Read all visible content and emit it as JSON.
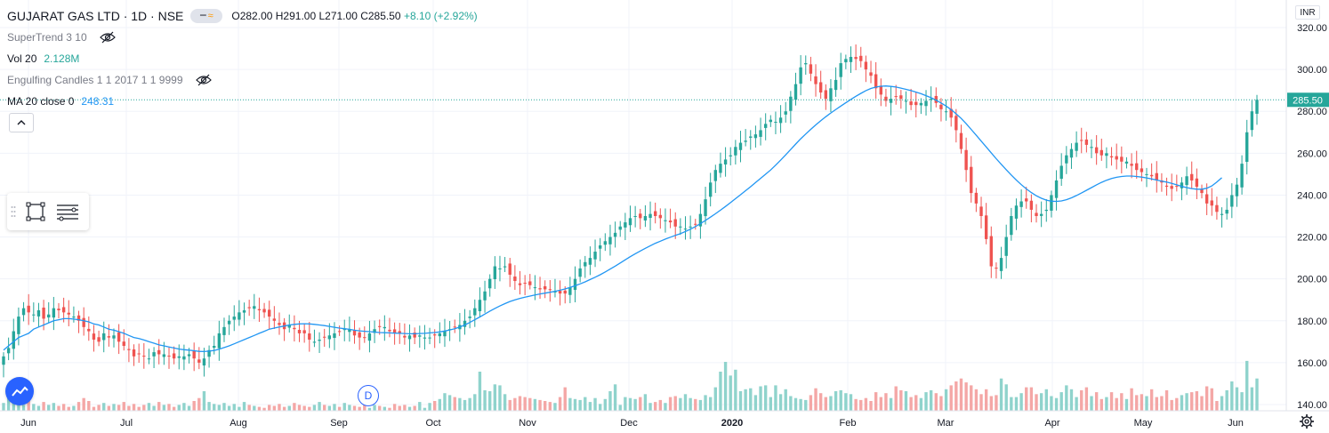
{
  "legend": {
    "title": "GUJARAT GAS LTD · 1D · NSE",
    "ohlc": {
      "o": "O282.00",
      "h": "H291.00",
      "l": "L271.00",
      "c": "C285.50",
      "change": "+8.10 (+2.92%)"
    },
    "supertrend": "SuperTrend 3 10",
    "vol_name": "Vol 20",
    "vol_value": "2.128M",
    "engulfing": "Engulfing Candles 1 1 2017 1 1 9999",
    "ma_name": "MA 20 close 0",
    "ma_value": "248.31"
  },
  "currency": "INR",
  "dividend_marker": "D",
  "colors": {
    "up": "#26a69a",
    "down": "#ef5350",
    "vol_up": "#8fd3cc",
    "vol_down": "#f4a7a6",
    "ma": "#2196f3",
    "grid": "#f0f3fa",
    "last_price_tag": "#26a69a"
  },
  "icons": {
    "hide_supertrend": "eye-off-icon",
    "hide_engulfing": "eye-off-icon",
    "collapse": "chevron-up-icon",
    "rect_tool": "rectangle-tool-icon",
    "lines_tool": "horizontal-lines-icon",
    "logo": "tradingview-cloud-icon",
    "settings": "gear-icon"
  },
  "chart_data": {
    "type": "candlestick",
    "title": "GUJARAT GAS LTD · 1D · NSE",
    "x_ticks": [
      "Jun",
      "Jul",
      "Aug",
      "Sep",
      "Oct",
      "Nov",
      "Dec",
      "2020",
      "Feb",
      "Mar",
      "Apr",
      "May",
      "Jun"
    ],
    "y_ticks": [
      "320.00",
      "300.00",
      "280.00",
      "260.00",
      "240.00",
      "220.00",
      "200.00",
      "180.00",
      "160.00",
      "140.00"
    ],
    "ylim": [
      137,
      326
    ],
    "last_price": "285.50",
    "series_close": [
      163,
      167,
      175,
      182,
      186,
      184,
      183,
      185,
      181,
      183,
      186,
      185,
      184,
      183,
      182,
      180,
      177,
      175,
      171,
      170,
      174,
      172,
      173,
      170,
      168,
      166,
      163,
      164,
      163,
      162,
      165,
      164,
      164,
      163,
      162,
      163,
      163,
      164,
      162,
      160,
      162,
      166,
      168,
      174,
      177,
      180,
      182,
      184,
      185,
      186,
      187,
      185,
      184,
      182,
      180,
      178,
      176,
      178,
      176,
      174,
      174,
      171,
      170,
      171,
      172,
      173,
      174,
      175,
      176,
      176,
      173,
      172,
      172,
      174,
      176,
      177,
      177,
      175,
      174,
      174,
      172,
      173,
      172,
      173,
      172,
      172,
      173,
      174,
      175,
      176,
      177,
      178,
      180,
      182,
      186,
      190,
      194,
      200,
      206,
      205,
      206,
      202,
      199,
      197,
      198,
      197,
      196,
      195,
      195,
      195,
      194,
      193,
      193,
      196,
      200,
      205,
      208,
      210,
      213,
      216,
      218,
      220,
      222,
      225,
      227,
      229,
      230,
      229,
      230,
      231,
      230,
      229,
      228,
      227,
      225,
      225,
      224,
      225,
      226,
      231,
      238,
      246,
      252,
      255,
      257,
      259,
      263,
      265,
      266,
      268,
      269,
      271,
      274,
      276,
      275,
      277,
      280,
      287,
      293,
      301,
      303,
      298,
      293,
      289,
      286,
      291,
      295,
      303,
      305,
      306,
      305,
      304,
      300,
      297,
      291,
      288,
      285,
      286,
      287,
      286,
      285,
      283,
      283,
      284,
      285,
      286,
      284,
      281,
      280,
      277,
      271,
      262,
      252,
      241,
      236,
      230,
      219,
      206,
      205,
      210,
      220,
      230,
      235,
      237,
      237,
      233,
      230,
      231,
      233,
      240,
      247,
      254,
      259,
      262,
      265,
      266,
      264,
      263,
      260,
      259,
      260,
      258,
      257,
      256,
      256,
      254,
      252,
      251,
      250,
      249,
      247,
      246,
      244,
      243,
      244,
      246,
      249,
      247,
      244,
      241,
      236,
      235,
      232,
      231,
      233,
      240,
      245,
      255,
      270,
      280,
      285.5
    ],
    "ma20": [
      166,
      168,
      170,
      172,
      173,
      174,
      176,
      177,
      178,
      179,
      180,
      180.5,
      181,
      181,
      180.8,
      180.5,
      180,
      179.5,
      178.5,
      178,
      177,
      176,
      175.5,
      174.8,
      174,
      173,
      172,
      171.5,
      170.8,
      170,
      169.3,
      168.5,
      168,
      167.5,
      167,
      166.5,
      166.2,
      166,
      165.7,
      165.4,
      165.3,
      165.5,
      165.8,
      166.4,
      167.2,
      168,
      169,
      170,
      171,
      172,
      173,
      174,
      175,
      176,
      176.5,
      177,
      177.5,
      178,
      178.3,
      178.5,
      178.6,
      178.5,
      178.3,
      178,
      177.7,
      177.3,
      176.9,
      176.5,
      176.2,
      175.9,
      175.5,
      175.2,
      175,
      174.8,
      174.6,
      174.4,
      174.3,
      174.2,
      174.1,
      174,
      173.9,
      173.8,
      173.8,
      173.9,
      174,
      174.2,
      174.4,
      174.7,
      175.1,
      175.6,
      176.2,
      177,
      178,
      179.2,
      180.5,
      181.8,
      183.2,
      184.6,
      185.9,
      187.1,
      188.2,
      189.2,
      190,
      190.7,
      191.3,
      191.8,
      192.3,
      192.8,
      193.2,
      193.6,
      194.1,
      194.6,
      195.2,
      195.9,
      196.7,
      197.6,
      198.6,
      199.7,
      200.8,
      202,
      203.3,
      204.7,
      206.1,
      207.6,
      209.1,
      210.6,
      212,
      213.3,
      214.6,
      215.8,
      217,
      218,
      219,
      219.9,
      220.8,
      221.6,
      222.6,
      223.7,
      225,
      226.4,
      227.9,
      229.5,
      231.1,
      232.8,
      234.6,
      236.4,
      238.3,
      240.2,
      242.1,
      244,
      246,
      248,
      250,
      252,
      254.3,
      256.7,
      259.2,
      261.8,
      264.4,
      266.9,
      269.2,
      271.4,
      273.5,
      275.5,
      277.4,
      279.2,
      280.9,
      282.5,
      284.1,
      285.7,
      287.2,
      288.6,
      289.9,
      290.9,
      291.6,
      292,
      292.1,
      291.9,
      291.6,
      291.1,
      290.5,
      289.9,
      289.2,
      288.4,
      287.5,
      286.5,
      285.3,
      284,
      282.5,
      280.8,
      278.8,
      276.6,
      274.1,
      271.4,
      268.6,
      265.8,
      263,
      260.2,
      257.4,
      254.7,
      252.1,
      249.6,
      247.2,
      245,
      243,
      241.2,
      239.7,
      238.5,
      237.6,
      237.1,
      237,
      237.2,
      237.8,
      238.7,
      239.8,
      241,
      242.3,
      243.6,
      244.9,
      246.1,
      247.1,
      247.9,
      248.5,
      248.9,
      249.1,
      249.1,
      248.9,
      248.6,
      248.2,
      247.7,
      247.2,
      246.7,
      246.2,
      245.6,
      244.9,
      244.2,
      243.6,
      243.1,
      242.8,
      242.8,
      243.3,
      244.4,
      246.2,
      248.31
    ],
    "volume_pct": [
      8,
      18,
      30,
      12,
      6,
      10,
      7,
      5,
      9,
      6,
      8,
      5,
      7,
      4,
      5,
      9,
      13,
      10,
      4,
      6,
      8,
      5,
      7,
      6,
      9,
      5,
      7,
      4,
      6,
      8,
      5,
      9,
      6,
      7,
      4,
      6,
      8,
      5,
      10,
      13,
      20,
      9,
      7,
      6,
      8,
      5,
      7,
      4,
      9,
      6,
      5,
      4,
      3,
      6,
      5,
      7,
      4,
      5,
      8,
      6,
      5,
      4,
      6,
      9,
      6,
      5,
      7,
      4,
      8,
      6,
      5,
      4,
      7,
      3,
      6,
      5,
      4,
      3,
      7,
      5,
      6,
      4,
      5,
      9,
      3,
      8,
      10,
      12,
      18,
      16,
      14,
      13,
      11,
      13,
      17,
      40,
      21,
      20,
      27,
      26,
      17,
      11,
      13,
      15,
      14,
      13,
      12,
      11,
      10,
      9,
      8,
      14,
      24,
      13,
      12,
      11,
      14,
      9,
      13,
      7,
      12,
      20,
      27,
      6,
      14,
      13,
      12,
      14,
      17,
      8,
      9,
      11,
      8,
      14,
      15,
      13,
      17,
      13,
      12,
      11,
      16,
      14,
      24,
      40,
      50,
      36,
      42,
      20,
      22,
      23,
      16,
      25,
      26,
      14,
      26,
      17,
      22,
      15,
      13,
      12,
      11,
      16,
      23,
      18,
      14,
      15,
      20,
      21,
      18,
      17,
      12,
      11,
      13,
      10,
      19,
      14,
      18,
      13,
      25,
      21,
      20,
      14,
      16,
      13,
      19,
      21,
      18,
      15,
      22,
      26,
      30,
      33,
      29,
      26,
      22,
      17,
      22,
      15,
      16,
      33,
      27,
      14,
      14,
      18,
      24,
      24,
      17,
      18,
      22,
      15,
      13,
      19,
      26,
      22,
      14,
      21,
      24,
      15,
      19,
      12,
      14,
      19,
      13,
      18,
      12,
      23,
      16,
      17,
      15,
      22,
      14,
      15,
      21,
      11,
      13,
      16,
      18,
      19,
      20,
      15,
      25,
      23,
      10,
      15,
      21,
      30,
      24,
      19,
      51,
      24,
      33
    ]
  }
}
